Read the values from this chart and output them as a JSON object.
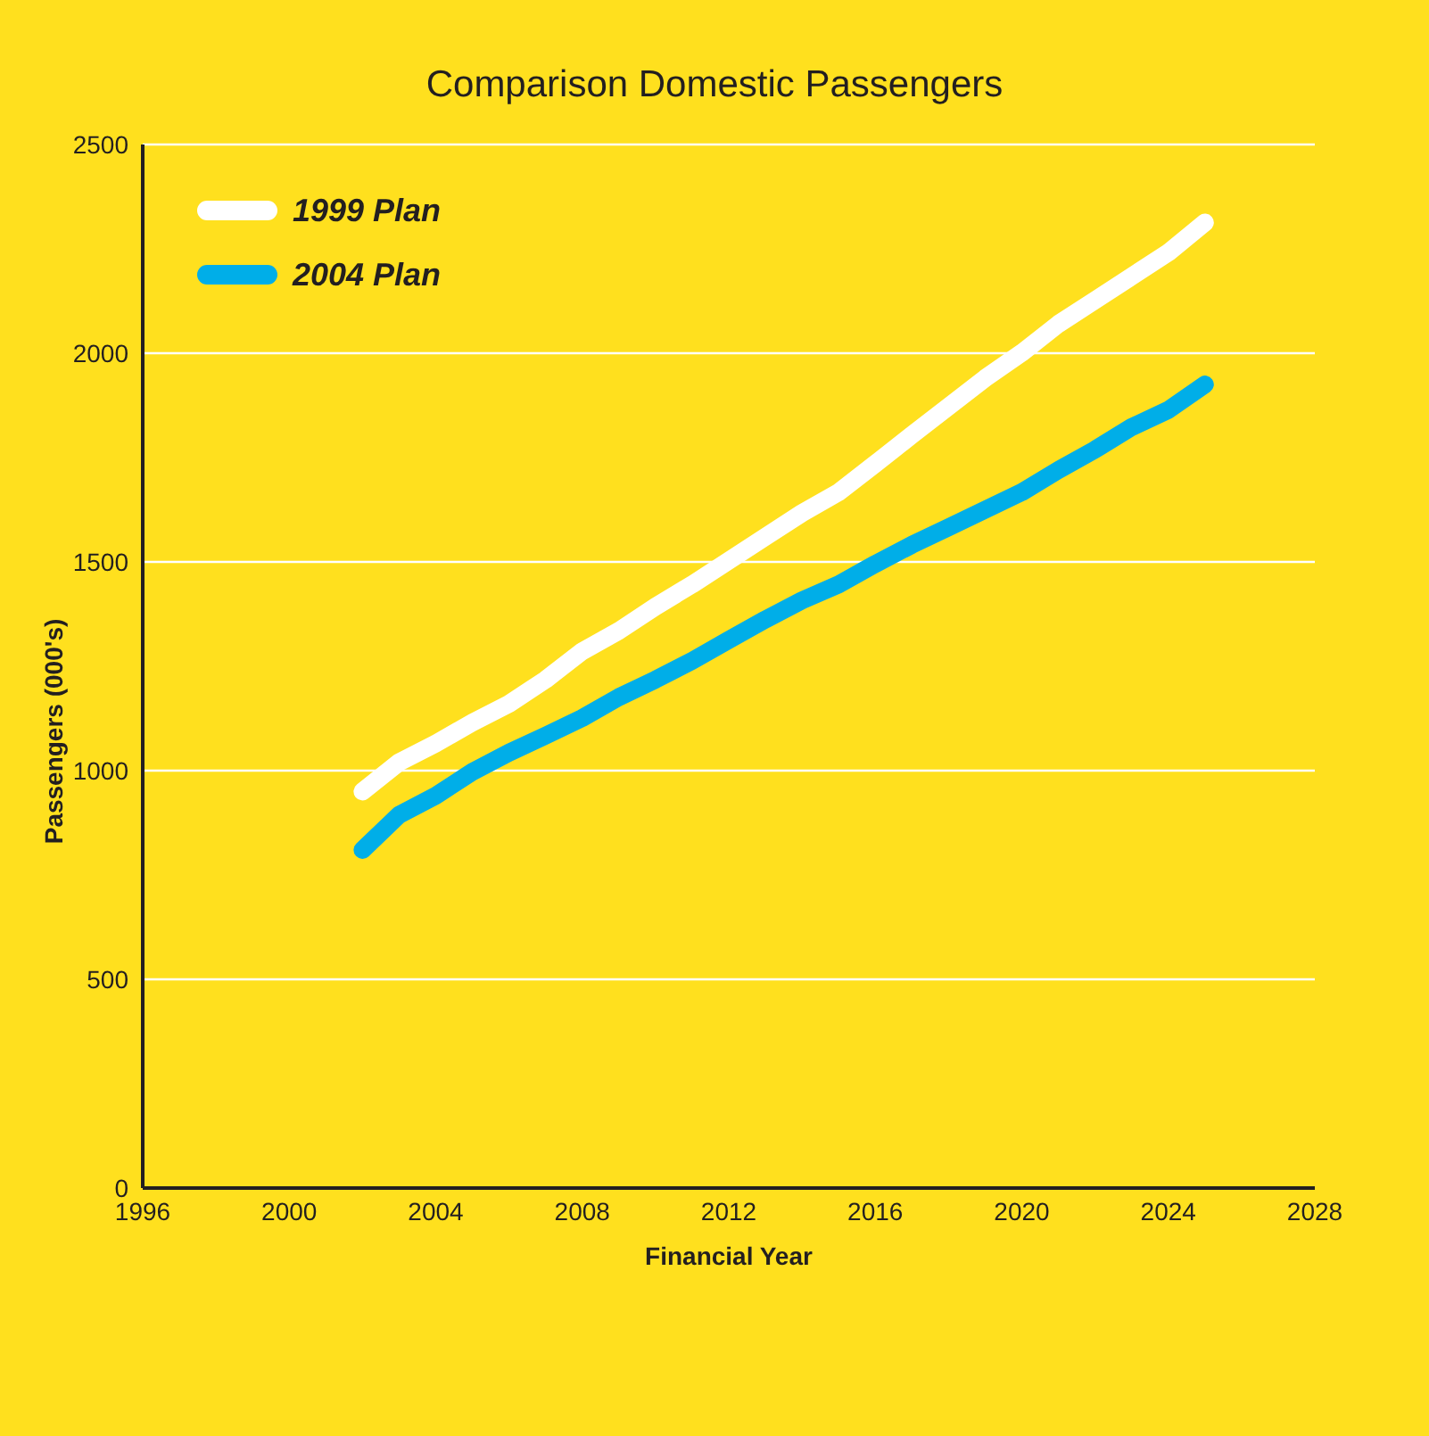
{
  "chart_data": {
    "type": "line",
    "title": "Comparison Domestic Passengers",
    "xlabel": "Financial Year",
    "ylabel": "Passengers (000's)",
    "x": [
      2002,
      2003,
      2004,
      2005,
      2006,
      2007,
      2008,
      2009,
      2010,
      2011,
      2012,
      2013,
      2014,
      2015,
      2016,
      2017,
      2018,
      2019,
      2020,
      2021,
      2022,
      2023,
      2024,
      2025
    ],
    "series": [
      {
        "name": "1999 Plan",
        "color": "#ffffff",
        "values": [
          950,
          1020,
          1065,
          1115,
          1160,
          1218,
          1286,
          1335,
          1393,
          1446,
          1503,
          1560,
          1617,
          1667,
          1735,
          1804,
          1872,
          1940,
          2001,
          2070,
          2127,
          2184,
          2241,
          2313
        ]
      },
      {
        "name": "2004 Plan",
        "color": "#00aee8",
        "values": [
          810,
          894,
          940,
          997,
          1043,
          1084,
          1126,
          1176,
          1218,
          1263,
          1313,
          1362,
          1408,
          1446,
          1495,
          1541,
          1583,
          1625,
          1667,
          1720,
          1769,
          1823,
          1864,
          1925
        ]
      }
    ],
    "xlim": [
      1996,
      2028
    ],
    "xticks": [
      1996,
      2000,
      2004,
      2008,
      2012,
      2016,
      2020,
      2024,
      2028
    ],
    "ylim": [
      0,
      2500
    ],
    "yticks": [
      0,
      500,
      1000,
      1500,
      2000,
      2500
    ],
    "grid": "y",
    "legend": "top left",
    "marker": "none",
    "line_style": "solid"
  }
}
